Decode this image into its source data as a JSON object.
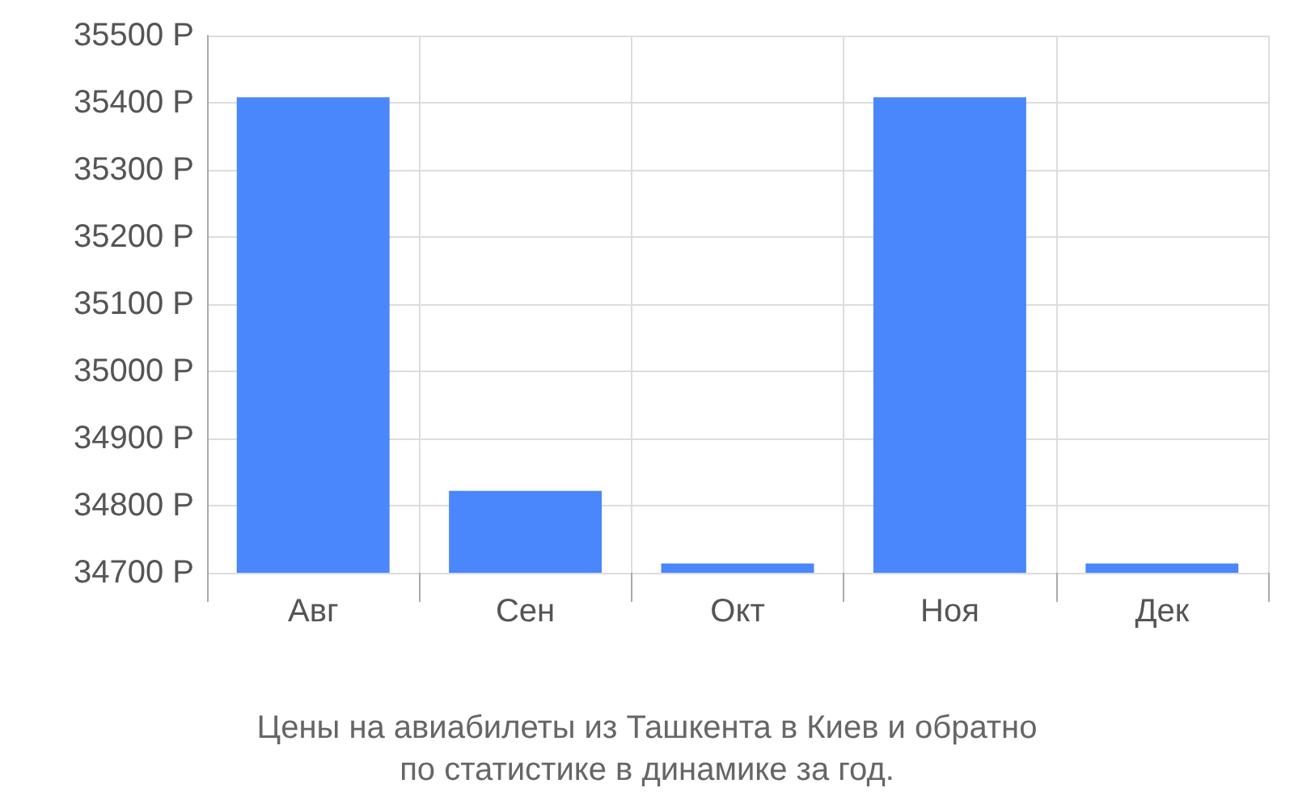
{
  "chart_data": {
    "type": "bar",
    "categories": [
      "Авг",
      "Сен",
      "Окт",
      "Ноя",
      "Дек"
    ],
    "values": [
      35408,
      34822,
      34714,
      35408,
      34714
    ],
    "color": "#4a86fc",
    "ylim": [
      34700,
      35500
    ],
    "yticks": [
      {
        "value": 34700,
        "label": "34700 Р"
      },
      {
        "value": 34800,
        "label": "34800 Р"
      },
      {
        "value": 34900,
        "label": "34900 Р"
      },
      {
        "value": 35000,
        "label": "35000 Р"
      },
      {
        "value": 35100,
        "label": "35100 Р"
      },
      {
        "value": 35200,
        "label": "35200 Р"
      },
      {
        "value": 35300,
        "label": "35300 Р"
      },
      {
        "value": 35400,
        "label": "35400 Р"
      },
      {
        "value": 35500,
        "label": "35500 Р"
      }
    ],
    "grid": true,
    "annotations": [
      "Цены на авиабилеты из Ташкента в Киев и обратно",
      "по статистике в динамике за год."
    ]
  }
}
